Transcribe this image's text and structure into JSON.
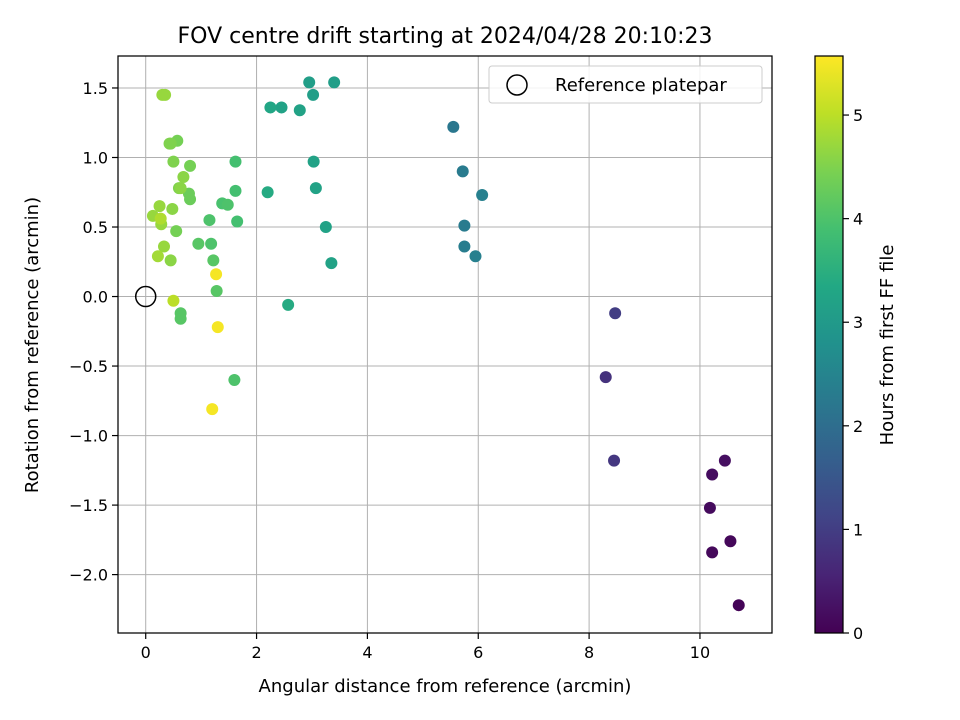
{
  "chart_data": {
    "type": "scatter",
    "title": "FOV centre drift starting at 2024/04/28 20:10:23",
    "xlabel": "Angular distance from reference (arcmin)",
    "ylabel": "Rotation from reference (arcmin)",
    "xlim": [
      -0.5,
      11.3
    ],
    "ylim": [
      -2.42,
      1.73
    ],
    "xticks": [
      0,
      2,
      4,
      6,
      8,
      10
    ],
    "yticks": [
      -2.0,
      -1.5,
      -1.0,
      -0.5,
      0.0,
      0.5,
      1.0,
      1.5
    ],
    "grid": true,
    "legend": {
      "placement": "top-right",
      "entries": [
        "Reference platepar"
      ]
    },
    "reference_point": {
      "x": 0,
      "y": 0
    },
    "colorbar": {
      "label": "Hours from first FF file",
      "range": [
        0,
        5.57
      ],
      "ticks": [
        0,
        1,
        2,
        3,
        4,
        5
      ],
      "colormap": "viridis"
    },
    "points": [
      {
        "x": 10.7,
        "y": -2.22,
        "t": 0.05
      },
      {
        "x": 10.55,
        "y": -1.76,
        "t": 0.1
      },
      {
        "x": 10.22,
        "y": -1.84,
        "t": 0.12
      },
      {
        "x": 10.18,
        "y": -1.52,
        "t": 0.15
      },
      {
        "x": 10.22,
        "y": -1.28,
        "t": 0.18
      },
      {
        "x": 10.45,
        "y": -1.18,
        "t": 0.22
      },
      {
        "x": 8.3,
        "y": -0.58,
        "t": 0.8
      },
      {
        "x": 8.45,
        "y": -1.18,
        "t": 0.9
      },
      {
        "x": 8.47,
        "y": -0.12,
        "t": 1.0
      },
      {
        "x": 5.55,
        "y": 1.22,
        "t": 2.2
      },
      {
        "x": 5.72,
        "y": 0.9,
        "t": 2.3
      },
      {
        "x": 5.75,
        "y": 0.51,
        "t": 2.3
      },
      {
        "x": 5.75,
        "y": 0.36,
        "t": 2.35
      },
      {
        "x": 5.95,
        "y": 0.29,
        "t": 2.4
      },
      {
        "x": 6.07,
        "y": 0.73,
        "t": 2.4
      },
      {
        "x": 3.4,
        "y": 1.54,
        "t": 3.1
      },
      {
        "x": 2.95,
        "y": 1.54,
        "t": 3.1
      },
      {
        "x": 3.02,
        "y": 1.45,
        "t": 3.1
      },
      {
        "x": 2.78,
        "y": 1.34,
        "t": 3.2
      },
      {
        "x": 2.45,
        "y": 1.36,
        "t": 3.2
      },
      {
        "x": 2.25,
        "y": 1.36,
        "t": 3.3
      },
      {
        "x": 3.03,
        "y": 0.97,
        "t": 3.2
      },
      {
        "x": 3.07,
        "y": 0.78,
        "t": 3.2
      },
      {
        "x": 3.25,
        "y": 0.5,
        "t": 3.2
      },
      {
        "x": 3.35,
        "y": 0.24,
        "t": 3.2
      },
      {
        "x": 2.57,
        "y": -0.06,
        "t": 3.4
      },
      {
        "x": 2.2,
        "y": 0.75,
        "t": 3.4
      },
      {
        "x": 1.62,
        "y": 0.97,
        "t": 3.9
      },
      {
        "x": 1.62,
        "y": 0.76,
        "t": 3.9
      },
      {
        "x": 1.65,
        "y": 0.54,
        "t": 3.9
      },
      {
        "x": 1.38,
        "y": 0.67,
        "t": 3.95
      },
      {
        "x": 1.48,
        "y": 0.66,
        "t": 4.0
      },
      {
        "x": 1.15,
        "y": 0.55,
        "t": 4.0
      },
      {
        "x": 1.18,
        "y": 0.38,
        "t": 4.0
      },
      {
        "x": 0.95,
        "y": 0.38,
        "t": 4.1
      },
      {
        "x": 1.22,
        "y": 0.26,
        "t": 4.1
      },
      {
        "x": 1.28,
        "y": 0.04,
        "t": 4.1
      },
      {
        "x": 0.63,
        "y": -0.12,
        "t": 4.1
      },
      {
        "x": 0.63,
        "y": -0.16,
        "t": 4.1
      },
      {
        "x": 1.6,
        "y": -0.6,
        "t": 4.0
      },
      {
        "x": 0.8,
        "y": 0.7,
        "t": 4.3
      },
      {
        "x": 0.78,
        "y": 0.74,
        "t": 4.3
      },
      {
        "x": 0.8,
        "y": 0.94,
        "t": 4.4
      },
      {
        "x": 0.55,
        "y": 0.47,
        "t": 4.4
      },
      {
        "x": 0.57,
        "y": 1.12,
        "t": 4.4
      },
      {
        "x": 0.45,
        "y": 1.1,
        "t": 4.5
      },
      {
        "x": 0.43,
        "y": 1.1,
        "t": 4.5
      },
      {
        "x": 0.5,
        "y": 0.97,
        "t": 4.5
      },
      {
        "x": 0.6,
        "y": 0.78,
        "t": 4.5
      },
      {
        "x": 0.63,
        "y": 0.78,
        "t": 4.6
      },
      {
        "x": 0.68,
        "y": 0.86,
        "t": 4.6
      },
      {
        "x": 0.48,
        "y": 0.63,
        "t": 4.6
      },
      {
        "x": 0.45,
        "y": 0.26,
        "t": 4.6
      },
      {
        "x": 0.33,
        "y": 0.36,
        "t": 4.7
      },
      {
        "x": 0.28,
        "y": 0.52,
        "t": 4.7
      },
      {
        "x": 0.25,
        "y": 0.65,
        "t": 4.7
      },
      {
        "x": 0.13,
        "y": 0.58,
        "t": 4.7
      },
      {
        "x": 0.22,
        "y": 0.29,
        "t": 4.8
      },
      {
        "x": 0.3,
        "y": 1.45,
        "t": 4.7
      },
      {
        "x": 0.35,
        "y": 1.45,
        "t": 4.7
      },
      {
        "x": 0.27,
        "y": 0.56,
        "t": 4.9
      },
      {
        "x": 0.5,
        "y": -0.03,
        "t": 5.0
      },
      {
        "x": 1.27,
        "y": 0.16,
        "t": 5.5
      },
      {
        "x": 1.3,
        "y": -0.22,
        "t": 5.5
      },
      {
        "x": 1.2,
        "y": -0.81,
        "t": 5.5
      }
    ]
  }
}
